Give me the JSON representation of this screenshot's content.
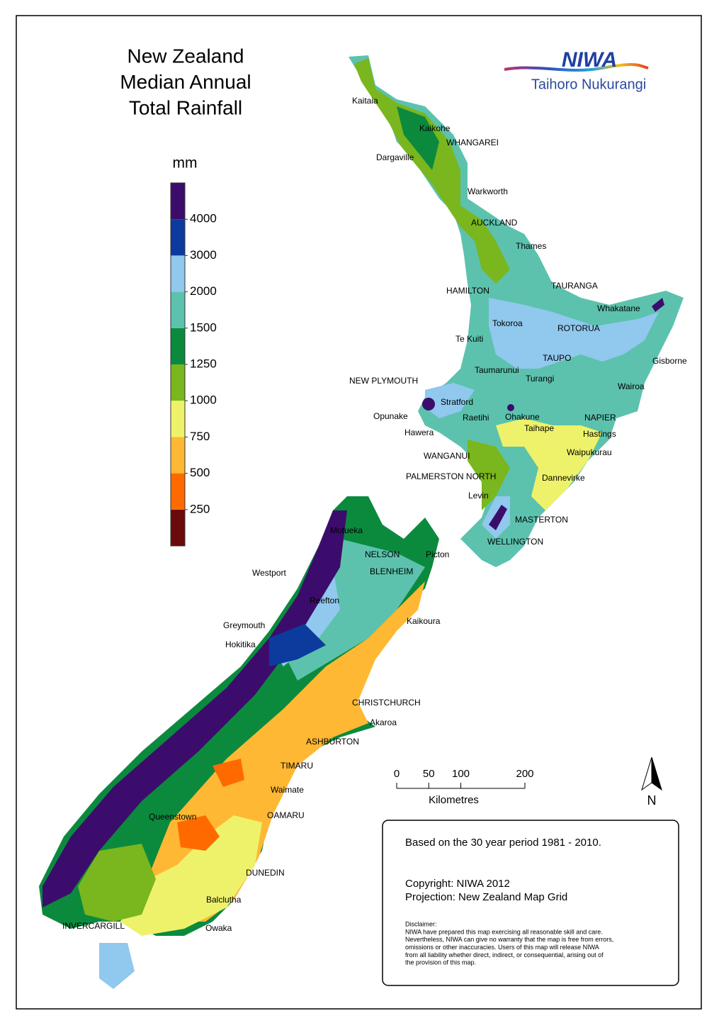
{
  "title": [
    "New Zealand",
    "Median Annual",
    "Total Rainfall"
  ],
  "logo": {
    "name": "NIWA",
    "subtitle": "Taihoro Nukurangi"
  },
  "legend": {
    "unit": "mm",
    "ticks": [
      250,
      500,
      750,
      1000,
      1250,
      1500,
      2000,
      3000,
      4000
    ],
    "colors": [
      "#6b0a0a",
      "#ff6a00",
      "#ffb833",
      "#eef26a",
      "#7ab61e",
      "#0b8a3e",
      "#5cc2ad",
      "#90c8ee",
      "#0c3b9e",
      "#3c0c6c"
    ]
  },
  "places": [
    "Kaitaia",
    "Kaikohe",
    "WHANGAREI",
    "Dargaville",
    "Warkworth",
    "AUCKLAND",
    "Thames",
    "HAMILTON",
    "TAURANGA",
    "Whakatane",
    "Tokoroa",
    "ROTORUA",
    "Te Kuiti",
    "TAUPO",
    "Gisborne",
    "Taumarunui",
    "Turangi",
    "NEW PLYMOUTH",
    "Wairoa",
    "Stratford",
    "Opunake",
    "Raetihi",
    "Ohakune",
    "NAPIER",
    "Taihape",
    "Hawera",
    "Hastings",
    "Waipukurau",
    "WANGANUI",
    "PALMERSTON NORTH",
    "Dannevirke",
    "Levin",
    "MASTERTON",
    "Motueka",
    "WELLINGTON",
    "NELSON",
    "Picton",
    "BLENHEIM",
    "Westport",
    "Reefton",
    "Kaikoura",
    "Greymouth",
    "Hokitika",
    "CHRISTCHURCH",
    "Akaroa",
    "ASHBURTON",
    "TIMARU",
    "Waimate",
    "OAMARU",
    "Queenstown",
    "DUNEDIN",
    "Balclutha",
    "INVERCARGILL",
    "Owaka"
  ],
  "scale_bar": {
    "ticks": [
      0,
      50,
      100,
      200
    ],
    "label": "Kilometres"
  },
  "north": "N",
  "notes": {
    "period": "Based on the 30 year period 1981 - 2010.",
    "copyright": "Copyright: NIWA 2012",
    "projection": "Projection: New Zealand Map Grid",
    "disclaimer_title": "Disclaimer:",
    "disclaimer": [
      "NIWA have prepared this map exercising all reasonable skill and care.",
      "Nevertheless, NIWA can give no warranty that the map is free from errors,",
      "omissions or other inaccuracies. Users of this map will release NIWA",
      "from all liability whether direct, indirect, or consequential, arising out of",
      "the provision of this map."
    ]
  }
}
